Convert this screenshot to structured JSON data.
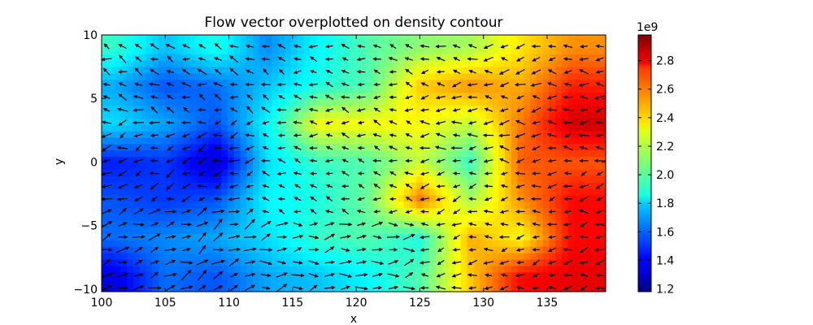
{
  "chart_data": {
    "type": "heatmap",
    "title": "Flow vector overplotted on density contour",
    "xlabel": "x",
    "ylabel": "y",
    "xlim": [
      100,
      139.6
    ],
    "ylim": [
      -10.2,
      10
    ],
    "x_ticks": [
      {
        "value": 100,
        "label": "100"
      },
      {
        "value": 105,
        "label": "105"
      },
      {
        "value": 110,
        "label": "110"
      },
      {
        "value": 115,
        "label": "115"
      },
      {
        "value": 120,
        "label": "120"
      },
      {
        "value": 125,
        "label": "125"
      },
      {
        "value": 130,
        "label": "130"
      },
      {
        "value": 135,
        "label": "135"
      }
    ],
    "y_ticks": [
      {
        "value": 10,
        "label": "10"
      },
      {
        "value": 5,
        "label": "5"
      },
      {
        "value": 0,
        "label": "0"
      },
      {
        "value": -5,
        "label": "−5"
      },
      {
        "value": -10,
        "label": "−10"
      }
    ],
    "colorbar": {
      "multiplier_label": "1e9",
      "range": [
        1.18,
        2.98
      ],
      "ticks": [
        {
          "value": 1.2,
          "label": "1.2"
        },
        {
          "value": 1.4,
          "label": "1.4"
        },
        {
          "value": 1.6,
          "label": "1.6"
        },
        {
          "value": 1.8,
          "label": "1.8"
        },
        {
          "value": 2.0,
          "label": "2.0"
        },
        {
          "value": 2.2,
          "label": "2.2"
        },
        {
          "value": 2.4,
          "label": "2.4"
        },
        {
          "value": 2.6,
          "label": "2.6"
        },
        {
          "value": 2.8,
          "label": "2.8"
        }
      ],
      "colormap": "jet"
    },
    "density_field": {
      "units_multiplier": 1000000000.0,
      "x_centers": [
        101,
        105,
        109,
        113,
        117,
        121,
        125,
        129,
        133,
        137
      ],
      "y_centers": [
        9,
        6,
        3,
        0,
        -3,
        -6,
        -9
      ],
      "values": [
        [
          1.95,
          1.75,
          1.9,
          1.65,
          1.85,
          2.0,
          2.1,
          2.15,
          2.35,
          2.5
        ],
        [
          1.7,
          1.55,
          1.6,
          1.75,
          1.9,
          2.0,
          2.4,
          2.5,
          2.45,
          2.7
        ],
        [
          1.8,
          1.7,
          1.55,
          1.85,
          2.3,
          2.3,
          2.3,
          2.2,
          2.55,
          2.85
        ],
        [
          1.45,
          1.5,
          1.3,
          1.8,
          1.95,
          2.0,
          2.2,
          1.95,
          2.6,
          2.6
        ],
        [
          1.55,
          1.5,
          1.55,
          1.85,
          1.9,
          2.05,
          2.55,
          2.15,
          2.5,
          2.75
        ],
        [
          1.6,
          1.65,
          1.7,
          1.8,
          1.95,
          2.0,
          1.9,
          2.45,
          2.3,
          2.75
        ],
        [
          1.35,
          1.6,
          1.55,
          1.7,
          1.75,
          1.85,
          2.0,
          2.4,
          2.75,
          2.8
        ]
      ]
    },
    "flow_vectors": {
      "grid_spacing": [
        1.25,
        1.0
      ],
      "description_key": "dominant_direction",
      "zones": [
        {
          "x_range": [
            100,
            112
          ],
          "y_range": [
            -10,
            -3
          ],
          "angle_deg": 25,
          "speed": 1.0
        },
        {
          "x_range": [
            100,
            112
          ],
          "y_range": [
            -3,
            4
          ],
          "angle_deg": 200,
          "speed": 0.7
        },
        {
          "x_range": [
            100,
            115
          ],
          "y_range": [
            4,
            10
          ],
          "angle_deg": 160,
          "speed": 0.7
        },
        {
          "x_range": [
            112,
            125
          ],
          "y_range": [
            -10,
            -4
          ],
          "angle_deg": 10,
          "speed": 0.9
        },
        {
          "x_range": [
            112,
            125
          ],
          "y_range": [
            -4,
            10
          ],
          "angle_deg": 170,
          "speed": 0.5
        },
        {
          "x_range": [
            125,
            140
          ],
          "y_range": [
            -10,
            0
          ],
          "angle_deg": 190,
          "speed": 0.6
        },
        {
          "x_range": [
            125,
            140
          ],
          "y_range": [
            0,
            10
          ],
          "angle_deg": 180,
          "speed": 0.7
        }
      ]
    }
  }
}
